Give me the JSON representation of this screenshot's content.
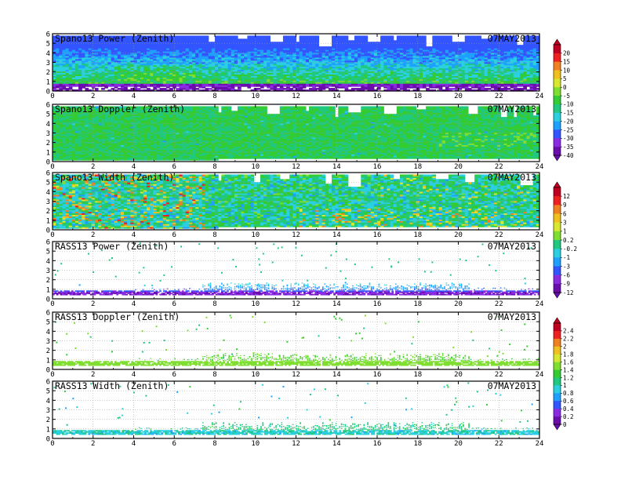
{
  "date_label": "07MAY2013",
  "x_ticks": [
    "0",
    "2",
    "4",
    "6",
    "8",
    "10",
    "12",
    "14",
    "16",
    "18",
    "20",
    "22",
    "24"
  ],
  "y_ticks": [
    "0",
    "1",
    "2",
    "3",
    "4",
    "5",
    "6"
  ],
  "colorbars": [
    {
      "labels": [
        "20",
        "15",
        "10",
        "5",
        "0",
        "-5",
        "-10",
        "-15",
        "-20",
        "-25",
        "-30",
        "-35",
        "-40"
      ]
    },
    {
      "labels": [
        "12",
        "9",
        "6",
        "3",
        "1",
        "0.2",
        "-0.2",
        "-1",
        "-3",
        "-6",
        "-9",
        "-12"
      ]
    },
    {
      "labels": [
        "2.4",
        "2.2",
        "2",
        "1.8",
        "1.6",
        "1.4",
        "1.2",
        "1",
        "0.8",
        "0.6",
        "0.4",
        "0.2",
        "0"
      ]
    }
  ],
  "colors": [
    "#6a0dad",
    "#8a2be2",
    "#3355ff",
    "#1ea0ff",
    "#2ad0e0",
    "#20c880",
    "#33cc33",
    "#7fdf30",
    "#d8e830",
    "#f0c020",
    "#f08020",
    "#ee2020",
    "#c00020"
  ],
  "chart_data": [
    {
      "type": "heatmap",
      "title": "Spano13 Power (Zenith)",
      "date": "07MAY2013",
      "x_range": [
        0,
        24
      ],
      "y_range": [
        0,
        6
      ],
      "grid": true,
      "top_gaps": true,
      "style": "spano_power"
    },
    {
      "type": "heatmap",
      "title": "Spano13 Doppler (Zenith)",
      "date": "07MAY2013",
      "x_range": [
        0,
        24
      ],
      "y_range": [
        0,
        6
      ],
      "grid": true,
      "top_gaps": true,
      "style": "spano_doppler"
    },
    {
      "type": "heatmap",
      "title": "Spano13 Width (Zenith)",
      "date": "07MAY2013",
      "x_range": [
        0,
        24
      ],
      "y_range": [
        0,
        6
      ],
      "grid": true,
      "top_gaps": true,
      "style": "spano_width"
    },
    {
      "type": "heatmap",
      "title": "RASS13 Power (Zenith)",
      "date": "07MAY2013",
      "x_range": [
        0,
        24
      ],
      "y_range": [
        0,
        6
      ],
      "grid": true,
      "top_gaps": false,
      "style": "rass_power"
    },
    {
      "type": "heatmap",
      "title": "RASS13 Doppler (Zenith)",
      "date": "07MAY2013",
      "x_range": [
        0,
        24
      ],
      "y_range": [
        0,
        6
      ],
      "grid": true,
      "top_gaps": false,
      "style": "rass_doppler"
    },
    {
      "type": "heatmap",
      "title": "RASS13 Width (Zenith)",
      "date": "07MAY2013",
      "x_range": [
        0,
        24
      ],
      "y_range": [
        0,
        6
      ],
      "grid": true,
      "top_gaps": false,
      "style": "rass_width"
    }
  ]
}
